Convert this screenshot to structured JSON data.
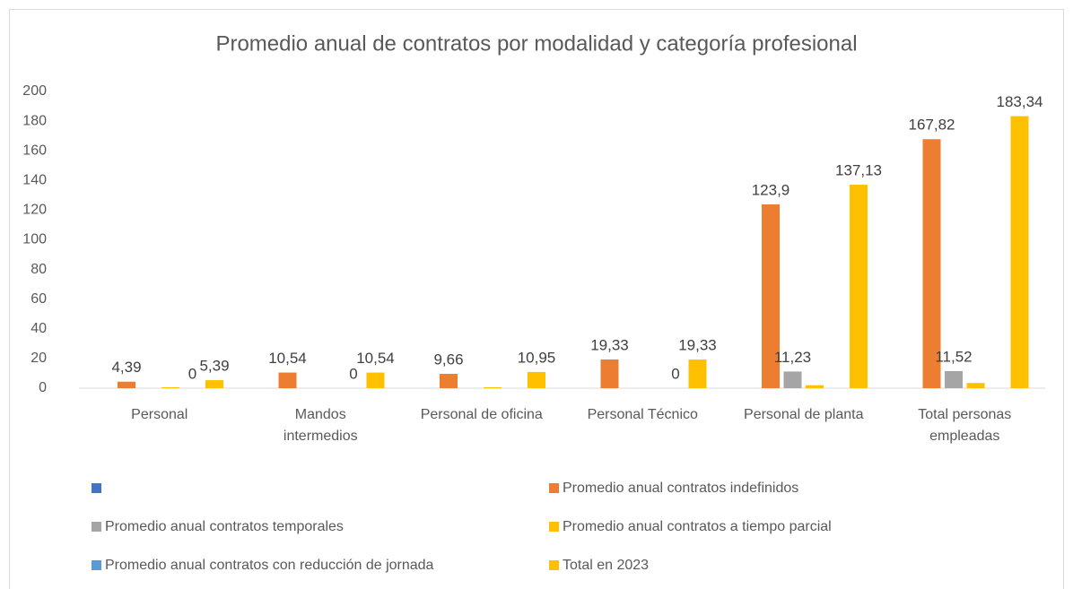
{
  "chart_data": {
    "type": "bar",
    "title": "Promedio anual de contratos por modalidad y categoría profesional",
    "categories": [
      "Personal",
      "Mandos intermedios",
      "Personal de oficina",
      "Personal Técnico",
      "Personal de planta",
      "Total personas empleadas"
    ],
    "series": [
      {
        "name": null,
        "color": "#4472c4",
        "values": [
          0,
          0,
          0,
          0,
          0,
          0
        ]
      },
      {
        "name": "Promedio anual contratos indefinidos",
        "color": "#ed7d31",
        "values": [
          4.39,
          10.54,
          9.66,
          19.33,
          123.9,
          167.82
        ],
        "value_labels": [
          "4,39",
          "10,54",
          "9,66",
          "19,33",
          "123,9",
          "167,82"
        ]
      },
      {
        "name": "Promedio anual contratos temporales",
        "color": "#a5a5a5",
        "values": [
          0,
          0,
          0,
          0,
          11.23,
          11.52
        ],
        "value_labels": [
          null,
          null,
          null,
          null,
          "11,23",
          "11,52"
        ]
      },
      {
        "name": "Promedio anual contratos a tiempo parcial",
        "color": "#ffc000",
        "values": [
          0.6,
          0,
          0.6,
          0,
          2,
          3.5
        ]
      },
      {
        "name": "Promedio anual contratos con reducción de jornada",
        "color": "#5b9bd5",
        "values": [
          0,
          0,
          0,
          0,
          0,
          0
        ],
        "value_labels": [
          "0",
          "0",
          null,
          "0",
          null,
          null
        ]
      },
      {
        "name": "Total en 2023",
        "color": "#ffc000",
        "values": [
          5.39,
          10.54,
          10.95,
          19.33,
          137.13,
          183.34
        ],
        "value_labels": [
          "5,39",
          "10,54",
          "10,95",
          "19,33",
          "137,13",
          "183,34"
        ]
      }
    ],
    "ylim": [
      0,
      200
    ],
    "yticks": [
      0,
      20,
      40,
      60,
      80,
      100,
      120,
      140,
      160,
      180,
      200
    ],
    "grid": false
  }
}
